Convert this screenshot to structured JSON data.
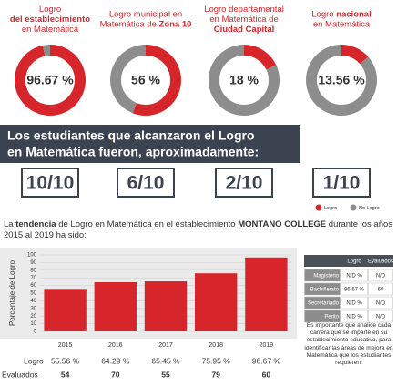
{
  "chart_data": [
    {
      "type": "donut",
      "title": [
        [
          {
            "text": "Logro"
          }
        ],
        [
          {
            "text": "del establecimiento",
            "bold": true
          }
        ],
        [
          {
            "text": "en Matemática"
          }
        ]
      ],
      "values": [
        96.67,
        3.33
      ],
      "center_label": "96.67 %"
    },
    {
      "type": "donut",
      "title": [
        [
          {
            "text": "Logro municipal en"
          }
        ],
        [
          {
            "text": "Matemática de "
          },
          {
            "text": "Zona 10",
            "bold": true
          }
        ]
      ],
      "values": [
        56,
        44
      ],
      "center_label": "56 %"
    },
    {
      "type": "donut",
      "title": [
        [
          {
            "text": "Logro departamental"
          }
        ],
        [
          {
            "text": "en Matemática de"
          }
        ],
        [
          {
            "text": "Ciudad Capital",
            "bold": true
          }
        ]
      ],
      "values": [
        18,
        82
      ],
      "center_label": "18 %"
    },
    {
      "type": "donut",
      "title": [
        [
          {
            "text": "Logro "
          },
          {
            "text": "nacional",
            "bold": true
          }
        ],
        [
          {
            "text": "en Matemática"
          }
        ]
      ],
      "values": [
        13.56,
        86.44
      ],
      "center_label": "13.56 %"
    },
    {
      "type": "bar",
      "intro": [
        {
          "text": "La "
        },
        {
          "text": "tendencia",
          "bold": true
        },
        {
          "text": " de Logro en Matemática en el establecimiento "
        },
        {
          "text": "MONTANO COLLEGE",
          "bold": true
        },
        {
          "text": " durante los años 2015 al 2019 ha sido:"
        }
      ],
      "ylabel": "Porcentaje de Logro",
      "categories": [
        "2015",
        "2016",
        "2017",
        "2018",
        "2019"
      ],
      "values": [
        55.56,
        64.29,
        65.45,
        75.95,
        96.67
      ],
      "value_labels_name": "Logro",
      "value_labels": [
        "55.56 %",
        "64.29 %",
        "65.45 %",
        "75.95 %",
        "96.67 %"
      ],
      "count_name": "Evaluados",
      "counts": [
        54,
        70,
        55,
        79,
        60
      ],
      "color": "#d7262b",
      "ylim": [
        0,
        100
      ],
      "yticks": [
        0,
        10,
        20,
        30,
        40,
        50,
        60,
        70,
        80,
        90,
        100
      ],
      "grid": true
    }
  ],
  "legend": [
    {
      "name": "Logro",
      "color": "#d7262b"
    },
    {
      "name": "No Logro",
      "color": "#8d8d8d"
    }
  ],
  "headline": [
    "Los estudiantes que alcanzaron el Logro",
    "en Matemática fueron, aproximadamente:"
  ],
  "fractions": [
    "10/10",
    "6/10",
    "2/10",
    "1/10"
  ],
  "table": {
    "header": [
      "Logro",
      "Evaluados"
    ],
    "rows": [
      [
        "Magisterio",
        "N/D %",
        "N/D"
      ],
      [
        "Bachillerato",
        "96.67 %",
        "60"
      ],
      [
        "Secretariado",
        "N/D %",
        "N/D"
      ],
      [
        "Perito",
        "N/D %",
        "N/D"
      ]
    ]
  },
  "note": "Es importante que analice cada carrera que se imparte en su establecimiento educativo, para identificar las áreas de mejora en Matemática que los estudiantes requieren."
}
